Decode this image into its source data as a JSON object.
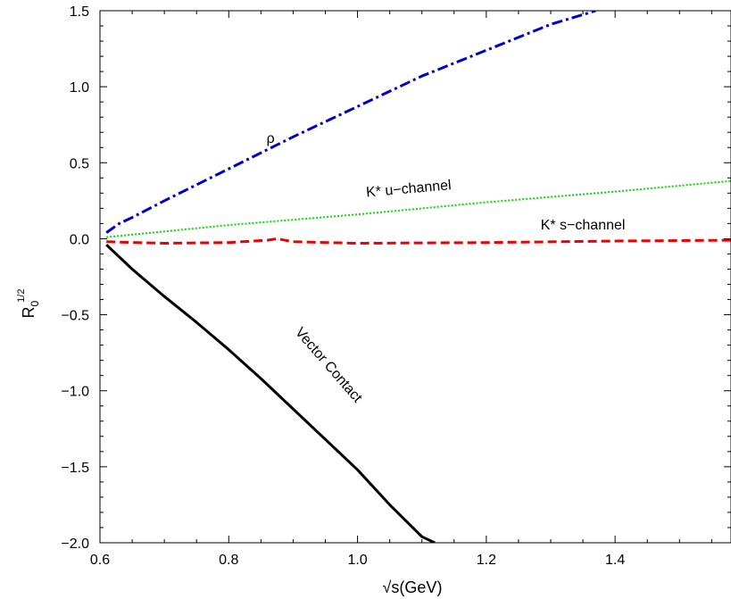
{
  "chart_data": {
    "type": "line",
    "xlabel": "√s(GeV)",
    "ylabel_main": "R",
    "ylabel_sub": "0",
    "ylabel_sup": "1/2",
    "xlim": [
      0.6,
      1.58
    ],
    "ylim": [
      -2.0,
      1.5
    ],
    "xticks": [
      0.6,
      0.8,
      1.0,
      1.2,
      1.4
    ],
    "xtick_labels": [
      "0.6",
      "0.8",
      "1.0",
      "1.2",
      "1.4"
    ],
    "yticks": [
      -2.0,
      -1.5,
      -1.0,
      -0.5,
      0.0,
      0.5,
      1.0,
      1.5
    ],
    "ytick_labels": [
      "−2.0",
      "−1.5",
      "−1.0",
      "−0.5",
      "0.0",
      "0.5",
      "1.0",
      "1.5"
    ],
    "grid": false,
    "series": [
      {
        "name": "ρ",
        "color": "#0000cc",
        "style": "dashdot",
        "x": [
          0.61,
          0.62,
          0.63,
          0.65,
          0.7,
          0.8,
          0.9,
          1.0,
          1.1,
          1.2,
          1.3,
          1.37
        ],
        "y": [
          0.04,
          0.07,
          0.1,
          0.14,
          0.25,
          0.46,
          0.67,
          0.87,
          1.07,
          1.24,
          1.41,
          1.5
        ]
      },
      {
        "name": "K* u−channel",
        "color": "#00dd00",
        "style": "dotted",
        "x": [
          0.61,
          0.8,
          1.0,
          1.2,
          1.4,
          1.58
        ],
        "y": [
          0.01,
          0.09,
          0.16,
          0.24,
          0.31,
          0.38
        ]
      },
      {
        "name": "K* s−channel",
        "color": "#ee0000",
        "style": "dashed",
        "x": [
          0.61,
          0.7,
          0.8,
          0.86,
          0.875,
          0.9,
          1.0,
          1.2,
          1.4,
          1.58
        ],
        "y": [
          -0.02,
          -0.03,
          -0.025,
          -0.01,
          0.0,
          -0.02,
          -0.03,
          -0.025,
          -0.015,
          -0.01
        ]
      },
      {
        "name": "Vector Contact",
        "color": "#000000",
        "style": "solid",
        "x": [
          0.61,
          0.65,
          0.7,
          0.75,
          0.8,
          0.85,
          0.9,
          0.95,
          1.0,
          1.05,
          1.1,
          1.12
        ],
        "y": [
          -0.04,
          -0.2,
          -0.38,
          -0.55,
          -0.73,
          -0.92,
          -1.12,
          -1.32,
          -1.52,
          -1.75,
          -1.96,
          -2.0
        ]
      }
    ],
    "annotations": [
      {
        "text": "ρ",
        "x": 0.865,
        "y": 0.63,
        "rotate": 0
      },
      {
        "text": "K* u−channel",
        "x": 1.08,
        "y": 0.3,
        "rotate": -5
      },
      {
        "text": "K* s−channel",
        "x": 1.35,
        "y": 0.06,
        "rotate": 0
      },
      {
        "text": "Vector Contact",
        "x": 0.95,
        "y": -0.85,
        "rotate": 49
      }
    ]
  }
}
